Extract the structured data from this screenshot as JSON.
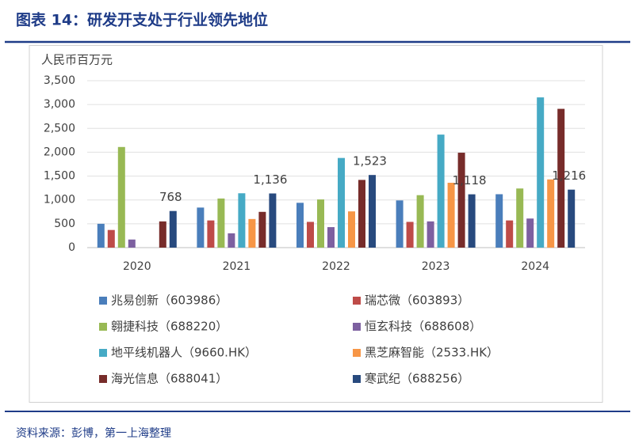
{
  "chart_data": {
    "type": "bar",
    "title": "图表 14：研发开支处于行业领先地位",
    "ylabel": "人民币百万元",
    "source": "资料来源：彭博，第一上海整理",
    "categories": [
      "2020",
      "2021",
      "2022",
      "2023",
      "2024"
    ],
    "series": [
      {
        "name": "兆易创新（603986）",
        "color": "#4a7ebb",
        "values": [
          500,
          840,
          940,
          990,
          1120
        ]
      },
      {
        "name": "瑞芯微（603893）",
        "color": "#be4b48",
        "values": [
          370,
          570,
          540,
          540,
          570
        ]
      },
      {
        "name": "翱捷科技（688220）",
        "color": "#98b954",
        "values": [
          2110,
          1030,
          1010,
          1100,
          1240
        ]
      },
      {
        "name": "恒玄科技（688608）",
        "color": "#7d60a0",
        "values": [
          170,
          300,
          430,
          550,
          610
        ]
      },
      {
        "name": "地平线机器人（9660.HK）",
        "color": "#46aac5",
        "values": [
          null,
          1140,
          1880,
          2370,
          3150
        ]
      },
      {
        "name": "黑芝麻智能（2533.HK）",
        "color": "#f79646",
        "values": [
          null,
          600,
          760,
          1360,
          1430
        ]
      },
      {
        "name": "海光信息（688041）",
        "color": "#772c2a",
        "values": [
          550,
          750,
          1420,
          1990,
          2910
        ]
      },
      {
        "name": "寒武纪（688256）",
        "color": "#284a7e",
        "values": [
          768,
          1136,
          1523,
          1118,
          1216
        ],
        "value_labels": [
          "768",
          "1,136",
          "1,523",
          "1,118",
          "1,216"
        ]
      }
    ],
    "ylim": [
      0,
      3500
    ],
    "yticks": [
      0,
      500,
      {
        "value": 1000,
        "label": "1,000"
      },
      {
        "value": 1500,
        "label": "1,500"
      },
      {
        "value": 2000,
        "label": "2,000"
      },
      {
        "value": 2500,
        "label": "2,500"
      },
      {
        "value": 3000,
        "label": "3,000"
      },
      {
        "value": 3500,
        "label": "3,500"
      }
    ],
    "grid": true
  }
}
